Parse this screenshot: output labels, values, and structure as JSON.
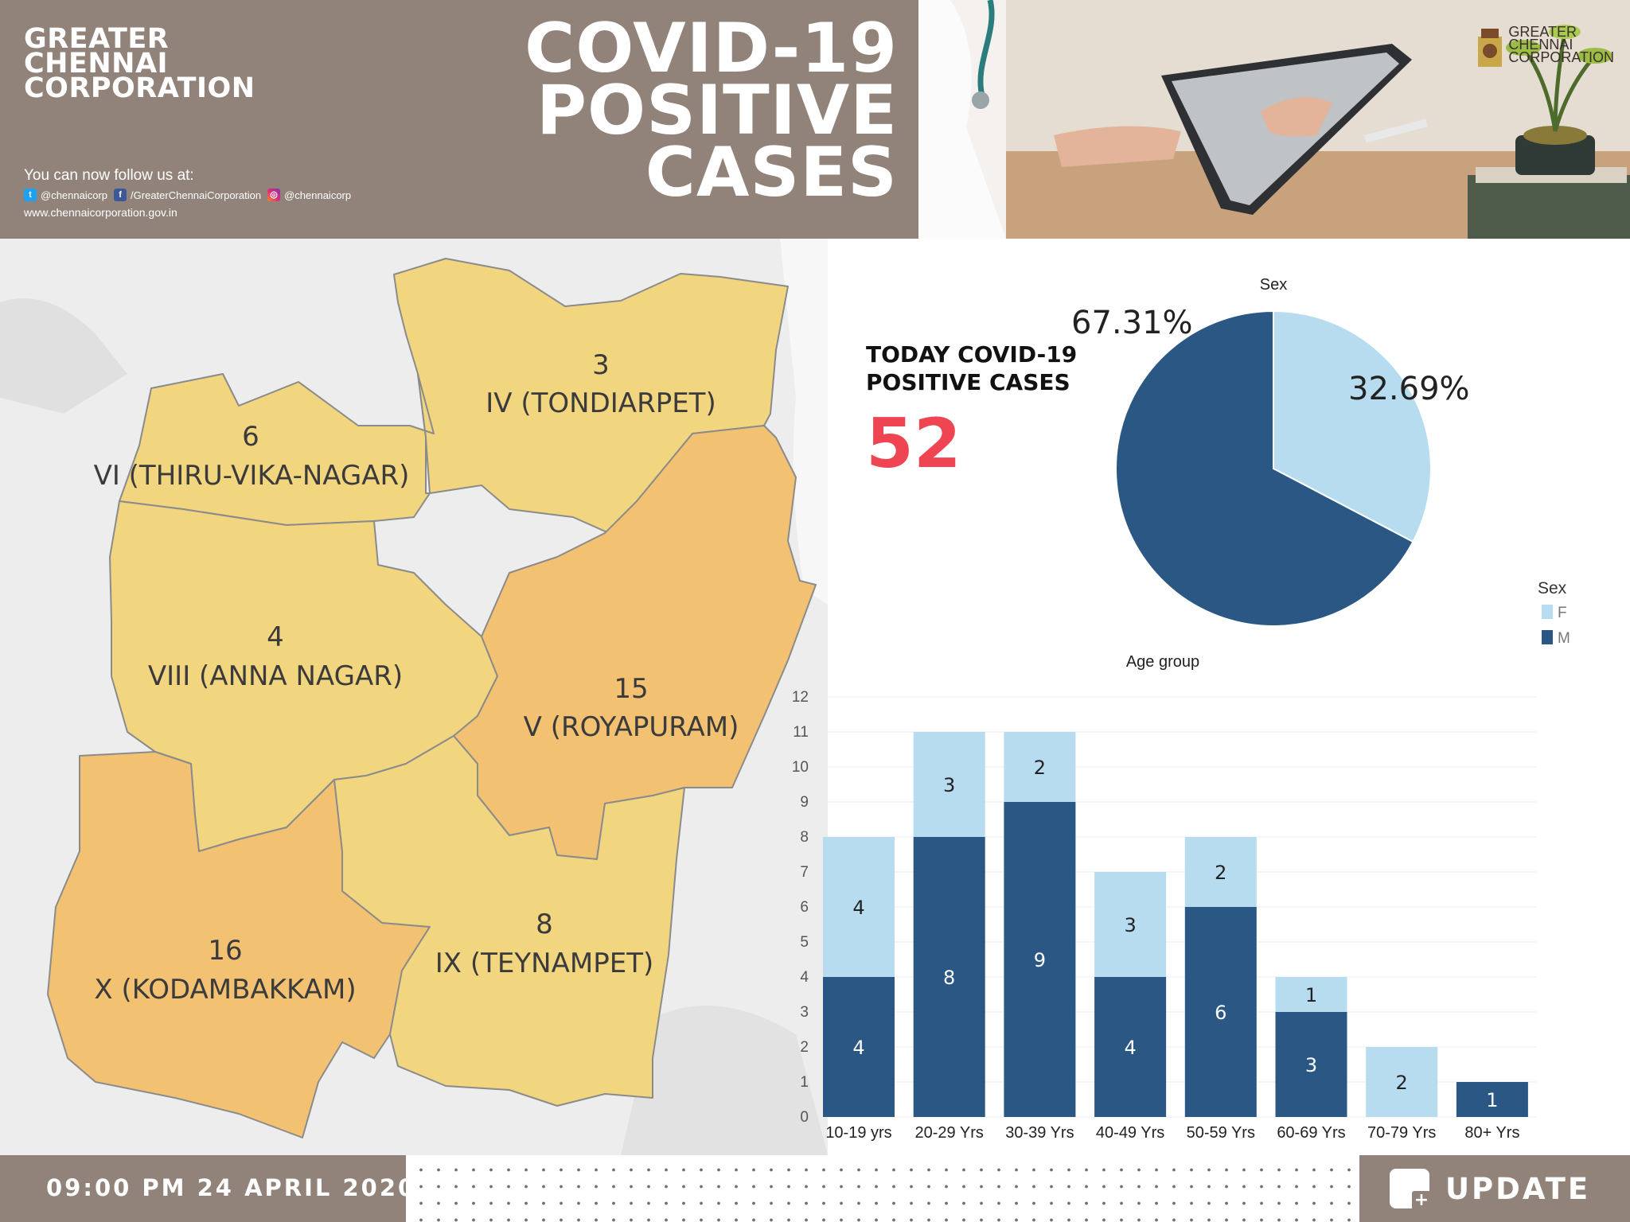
{
  "header": {
    "org_line1": "GREATER",
    "org_line2": "CHENNAI",
    "org_line3": "CORPORATION",
    "title_line1": "COVID-19",
    "title_line2": "POSITIVE",
    "title_line3": "CASES",
    "follow_text": "You can now follow us at:",
    "twitter_handle": "@chennaicorp",
    "facebook_handle": "/GreaterChennaiCorporation",
    "instagram_handle": "@chennaicorp",
    "website": "www.chennaicorporation.gov.in"
  },
  "photo_logo": {
    "line1": "GREATER",
    "line2": "CHENNAI",
    "line3": "CORPORATION"
  },
  "today": {
    "label_line1": "TODAY COVID-19",
    "label_line2": "POSITIVE CASES",
    "value": "52"
  },
  "map": {
    "zones": [
      {
        "number": "3",
        "name": "IV (TONDIARPET)"
      },
      {
        "number": "6",
        "name": "VI (THIRU-VIKA-NAGAR)"
      },
      {
        "number": "4",
        "name": "VIII (ANNA NAGAR)"
      },
      {
        "number": "15",
        "name": "V (ROYAPURAM)"
      },
      {
        "number": "16",
        "name": "X (KODAMBAKKAM)"
      },
      {
        "number": "8",
        "name": "IX (TEYNAMPET)"
      }
    ]
  },
  "chart_data": [
    {
      "type": "pie",
      "title": "Sex",
      "legend_title": "Sex",
      "legend_placement": "right",
      "slices": [
        {
          "name": "F",
          "value": 32.69,
          "label": "32.69%",
          "color": "#b7dcf0"
        },
        {
          "name": "M",
          "value": 67.31,
          "label": "67.31%",
          "color": "#2a5783"
        }
      ]
    },
    {
      "type": "bar",
      "stacked": true,
      "title": "Age group",
      "categories": [
        "10-19 yrs",
        "20-29 Yrs",
        "30-39 Yrs",
        "40-49 Yrs",
        "50-59 Yrs",
        "60-69 Yrs",
        "70-79 Yrs",
        "80+ Yrs"
      ],
      "series": [
        {
          "name": "M",
          "color": "#2a5783",
          "values": [
            4,
            8,
            9,
            4,
            6,
            3,
            0,
            1
          ]
        },
        {
          "name": "F",
          "color": "#b7dcf0",
          "values": [
            4,
            3,
            2,
            3,
            2,
            1,
            2,
            0
          ]
        }
      ],
      "ylim": [
        0,
        12
      ],
      "yticks": [
        "0",
        "1",
        "2",
        "3",
        "4",
        "5",
        "6",
        "7",
        "8",
        "9",
        "10",
        "11",
        "12"
      ],
      "grid": true
    }
  ],
  "footer": {
    "time": "09:00 PM 24 APRIL 2020",
    "update": "UPDATE"
  },
  "colors": {
    "brand": "#918379",
    "today_value": "#ef4452",
    "map_light": "#f2d57f",
    "map_dark": "#f3c172"
  }
}
